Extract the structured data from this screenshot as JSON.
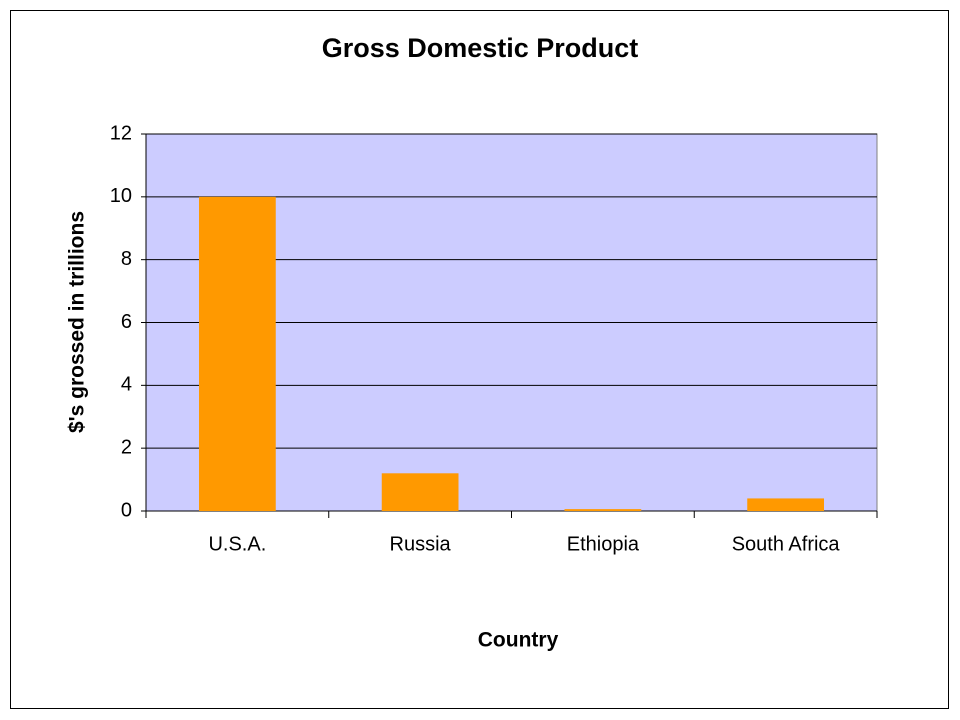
{
  "chart_data": {
    "type": "bar",
    "title": "Gross Domestic Product",
    "x_label": "Country",
    "y_label": "$'s grossed in trillions",
    "categories": [
      "U.S.A.",
      "Russia",
      "Ethiopia",
      "South Africa"
    ],
    "values": [
      10,
      1.2,
      0.06,
      0.4
    ],
    "color": "#ff9900",
    "ylim": [
      0,
      12
    ],
    "yticks": [
      0,
      2,
      4,
      6,
      8,
      10,
      12
    ],
    "grid": true,
    "plot_background": "#ccccff"
  }
}
